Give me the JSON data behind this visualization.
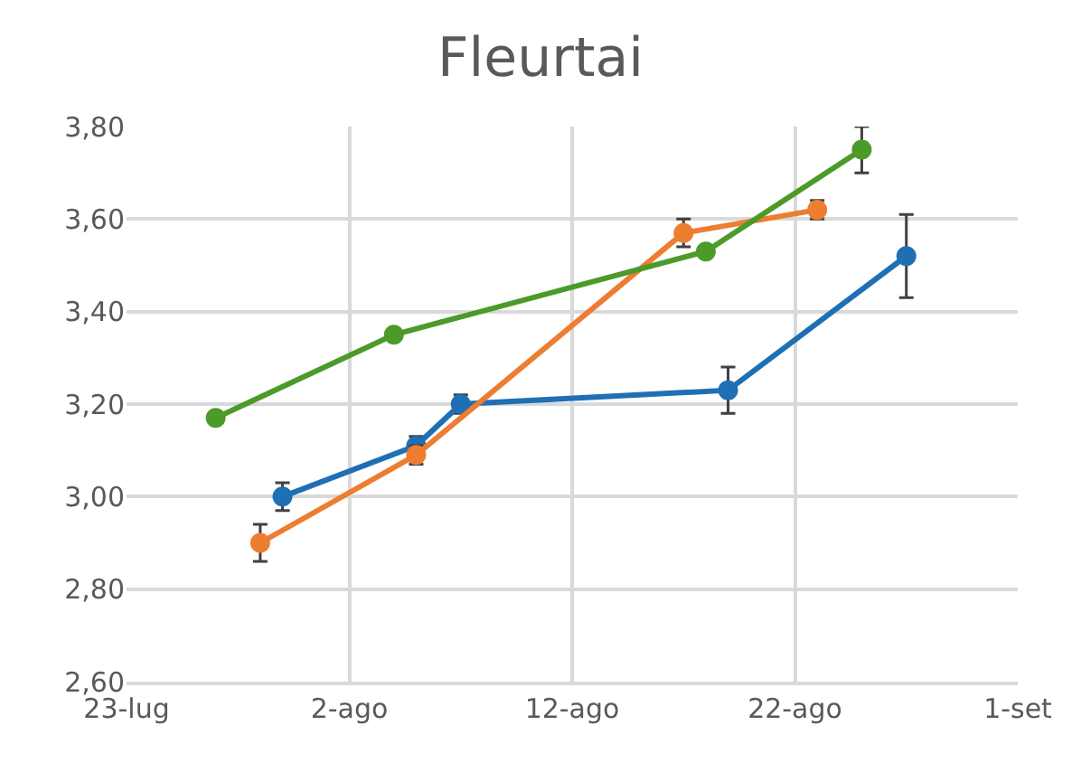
{
  "chart_data": {
    "type": "line",
    "title": "Fleurtai",
    "xlim": [
      "--07-23",
      "--09-01"
    ],
    "xticks": [
      {
        "value": "--07-23",
        "label": "23-lug"
      },
      {
        "value": "--08-02",
        "label": "2-ago"
      },
      {
        "value": "--08-12",
        "label": "12-ago"
      },
      {
        "value": "--08-22",
        "label": "22-ago"
      },
      {
        "value": "--09-01",
        "label": "1-set"
      }
    ],
    "ylim": [
      2.6,
      3.8
    ],
    "yticks": [
      {
        "value": 2.6,
        "label": "2,60"
      },
      {
        "value": 2.8,
        "label": "2,80"
      },
      {
        "value": 3.0,
        "label": "3,00"
      },
      {
        "value": 3.2,
        "label": "3,20"
      },
      {
        "value": 3.4,
        "label": "3,40"
      },
      {
        "value": 3.6,
        "label": "3,60"
      },
      {
        "value": 3.8,
        "label": "3,80"
      }
    ],
    "grid": true,
    "marker": "circle",
    "line_style": "solid",
    "series": [
      {
        "color": "#1f6fb4",
        "x": [
          "--07-30",
          "--08-05",
          "--08-07",
          "--08-19",
          "--08-27"
        ],
        "values": [
          3.0,
          3.11,
          3.2,
          3.23,
          3.52
        ],
        "errors": [
          0.03,
          0.02,
          0.02,
          0.05,
          0.09
        ]
      },
      {
        "color": "#ed7d31",
        "x": [
          "--07-29",
          "--08-05",
          "--08-17",
          "--08-23"
        ],
        "values": [
          2.9,
          3.09,
          3.57,
          3.62
        ],
        "errors": [
          0.04,
          0.02,
          0.03,
          0.02
        ]
      },
      {
        "color": "#4c9a2a",
        "x": [
          "--07-27",
          "--08-04",
          "--08-18",
          "--08-25"
        ],
        "values": [
          3.17,
          3.35,
          3.53,
          3.75
        ],
        "errors": [
          null,
          null,
          null,
          0.05
        ]
      }
    ]
  }
}
